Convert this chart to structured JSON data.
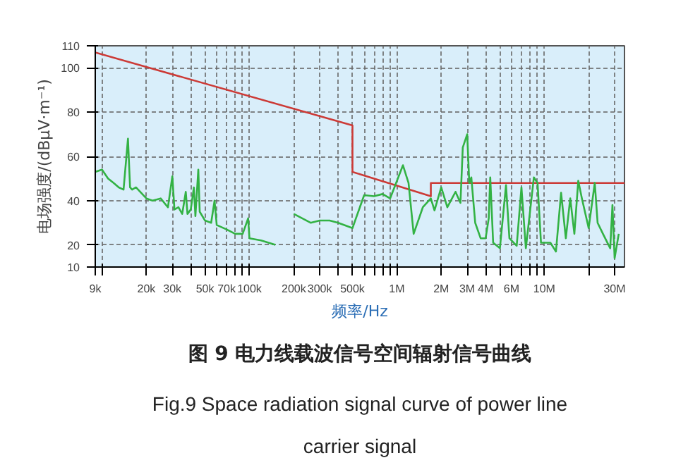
{
  "chart_data": {
    "type": "line",
    "xlabel": "频率/Hz",
    "ylabel": "电场强度/(dBμV·m⁻¹)",
    "log": "x",
    "grid": true,
    "xlim": [
      9000,
      35000000
    ],
    "ylim": [
      10,
      110
    ],
    "xticks": [
      {
        "value": 9000,
        "label": "9k"
      },
      {
        "value": 10000,
        "label": null
      },
      {
        "value": 20000,
        "label": "20k"
      },
      {
        "value": 30000,
        "label": "30k"
      },
      {
        "value": 40000,
        "label": null
      },
      {
        "value": 50000,
        "label": "50k"
      },
      {
        "value": 60000,
        "label": null
      },
      {
        "value": 70000,
        "label": "70k"
      },
      {
        "value": 80000,
        "label": null
      },
      {
        "value": 90000,
        "label": null
      },
      {
        "value": 100000,
        "label": "100k"
      },
      {
        "value": 200000,
        "label": "200k"
      },
      {
        "value": 300000,
        "label": "300k"
      },
      {
        "value": 400000,
        "label": null
      },
      {
        "value": 500000,
        "label": "500k"
      },
      {
        "value": 600000,
        "label": null
      },
      {
        "value": 700000,
        "label": null
      },
      {
        "value": 800000,
        "label": null
      },
      {
        "value": 900000,
        "label": null
      },
      {
        "value": 1000000,
        "label": "1M"
      },
      {
        "value": 2000000,
        "label": "2M"
      },
      {
        "value": 3000000,
        "label": "3M"
      },
      {
        "value": 4000000,
        "label": "4M"
      },
      {
        "value": 5000000,
        "label": null
      },
      {
        "value": 6000000,
        "label": "6M"
      },
      {
        "value": 7000000,
        "label": null
      },
      {
        "value": 8000000,
        "label": null
      },
      {
        "value": 9000000,
        "label": null
      },
      {
        "value": 10000000,
        "label": "10M"
      },
      {
        "value": 20000000,
        "label": null
      },
      {
        "value": 30000000,
        "label": "30M"
      }
    ],
    "yticks": [
      10,
      20,
      40,
      60,
      80,
      100,
      110
    ],
    "series": [
      {
        "color": "#cc3a36",
        "x": [
          9000,
          500000,
          500000,
          1700000,
          1700000,
          35000000
        ],
        "values": [
          107,
          74,
          53,
          42,
          48,
          48
        ]
      },
      {
        "color": "#33b244",
        "x": [
          9000,
          10000,
          11000,
          12000,
          13000,
          14000,
          15000,
          15500,
          16000,
          17000,
          20000,
          22000,
          25000,
          28000,
          30000,
          31000,
          33000,
          35000,
          37000,
          38000,
          40000,
          42000,
          43000,
          45000,
          46000,
          50000,
          55000,
          58000,
          60000,
          70000,
          80000,
          90000,
          98000,
          100000,
          120000,
          150000,
          150001,
          200000,
          260000,
          300000,
          350000,
          400000,
          500000,
          600000,
          700000,
          800000,
          900000,
          1100000,
          1200000,
          1300000,
          1500000,
          1700000,
          1800000,
          2000000,
          2200000,
          2500000,
          2700000,
          2800000,
          3000000,
          3100000,
          3200000,
          3400000,
          3700000,
          4000000,
          4200000,
          4300000,
          4500000,
          5000000,
          5500000,
          5800000,
          6500000,
          7000000,
          7500000,
          8500000,
          9000000,
          9500000,
          11000000,
          12000000,
          13000000,
          14000000,
          15000000,
          16000000,
          17000000,
          18000000,
          20000000,
          22000000,
          23000000,
          25000000,
          28000000,
          29000000,
          30000000,
          32000000
        ],
        "values": [
          53,
          54,
          50,
          48,
          46,
          45,
          68,
          46,
          45,
          46,
          41,
          40,
          41,
          37,
          51,
          36,
          37,
          34,
          44,
          34,
          36,
          46,
          33,
          54,
          35,
          31,
          30,
          40,
          29,
          27,
          25,
          25,
          32,
          23,
          22,
          20,
          null,
          34,
          30,
          31,
          31,
          30,
          27.6,
          42.5,
          42,
          43,
          41,
          56,
          48,
          25,
          37,
          41,
          35.6,
          46,
          37,
          44,
          39,
          64,
          70,
          48,
          50.5,
          30,
          23,
          23,
          32,
          50.5,
          21,
          18.5,
          47,
          23,
          19.6,
          46,
          18.5,
          50.5,
          48,
          21,
          21,
          17,
          43.6,
          23,
          41,
          25,
          49,
          41,
          27.6,
          48,
          30,
          25,
          18.5,
          38,
          14,
          25
        ]
      }
    ],
    "annotations": [
      "图 9 电力线载波信号空间辐射信号曲线",
      "Fig.9 Space radiation signal curve of power line carrier signal"
    ]
  }
}
